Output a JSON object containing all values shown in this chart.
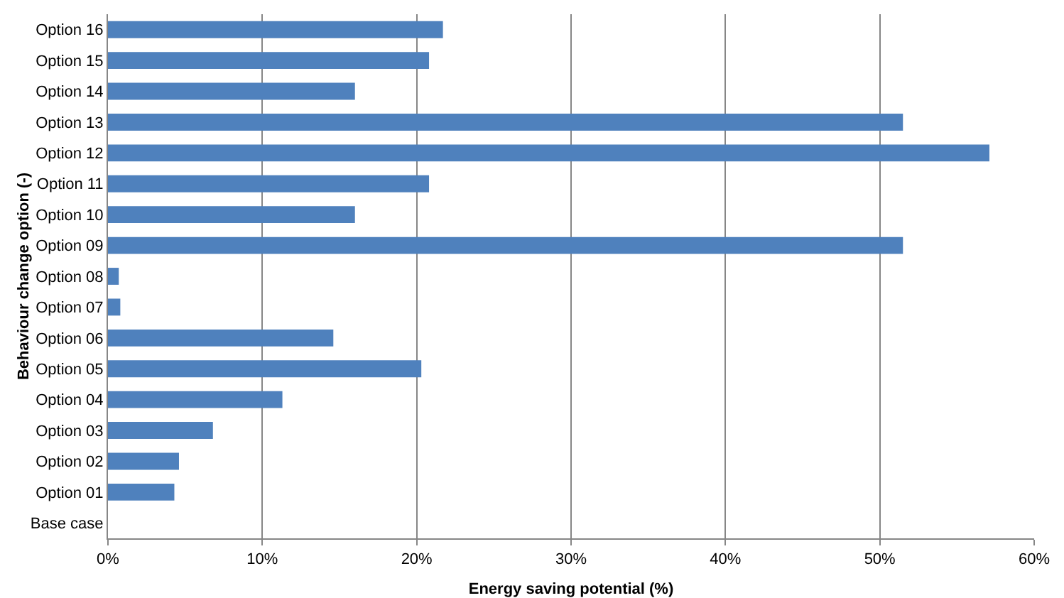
{
  "chart_data": {
    "type": "bar",
    "orientation": "horizontal",
    "xlabel": "Energy saving potential (%)",
    "ylabel": "Behaviour change option (-)",
    "categories": [
      "Option 16",
      "Option 15",
      "Option 14",
      "Option 13",
      "Option 12",
      "Option 11",
      "Option 10",
      "Option 09",
      "Option 08",
      "Option 07",
      "Option 06",
      "Option 05",
      "Option 04",
      "Option 03",
      "Option 02",
      "Option 01",
      "Base case"
    ],
    "values": [
      21.7,
      20.8,
      16.0,
      51.5,
      57.1,
      20.8,
      16.0,
      51.5,
      0.7,
      0.8,
      14.6,
      20.3,
      11.3,
      6.8,
      4.6,
      4.3,
      0
    ],
    "color": "#4f81bd",
    "xlim": [
      0,
      60
    ],
    "xticks": [
      {
        "value": 0,
        "label": "0%"
      },
      {
        "value": 10,
        "label": "10%"
      },
      {
        "value": 20,
        "label": "20%"
      },
      {
        "value": 30,
        "label": "30%"
      },
      {
        "value": 40,
        "label": "40%"
      },
      {
        "value": 50,
        "label": "50%"
      },
      {
        "value": 60,
        "label": "60%"
      }
    ],
    "grid": "x",
    "legend": false
  }
}
